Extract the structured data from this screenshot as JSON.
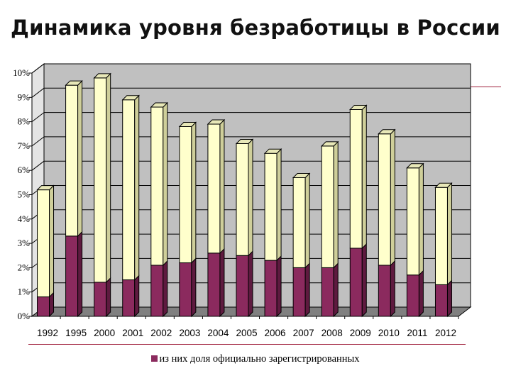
{
  "slide": {
    "title": "Динамика уровня безработицы в России"
  },
  "colors": {
    "total": "#ffffcc",
    "registered": "#8b2a5e",
    "wall": "#c0c0c0",
    "floor": "#808080",
    "accent_line": "#a0213d"
  },
  "chart_data": {
    "type": "bar",
    "stacked": true,
    "three_d": true,
    "title": "",
    "xlabel": "",
    "ylabel": "",
    "ylim": [
      0,
      10
    ],
    "y_ticks": [
      "0%",
      "1%",
      "2%",
      "3%",
      "4%",
      "5%",
      "6%",
      "7%",
      "8%",
      "9%",
      "10%"
    ],
    "grid": true,
    "legend": "bottom",
    "categories": [
      "1992",
      "1995",
      "2000",
      "2001",
      "2002",
      "2003",
      "2004",
      "2005",
      "2006",
      "2007",
      "2008",
      "2009",
      "2010",
      "2011",
      "2012"
    ],
    "series": [
      {
        "name": "из них доля официально зарегистрированных",
        "values": [
          0.8,
          3.3,
          1.4,
          1.5,
          2.1,
          2.2,
          2.6,
          2.5,
          2.3,
          2.0,
          2.0,
          2.8,
          2.1,
          1.7,
          1.3
        ]
      },
      {
        "name": "",
        "values": [
          4.4,
          6.2,
          8.4,
          7.4,
          6.5,
          5.6,
          5.3,
          4.6,
          4.4,
          3.7,
          5.0,
          5.7,
          5.4,
          4.4,
          4.0
        ]
      }
    ]
  }
}
